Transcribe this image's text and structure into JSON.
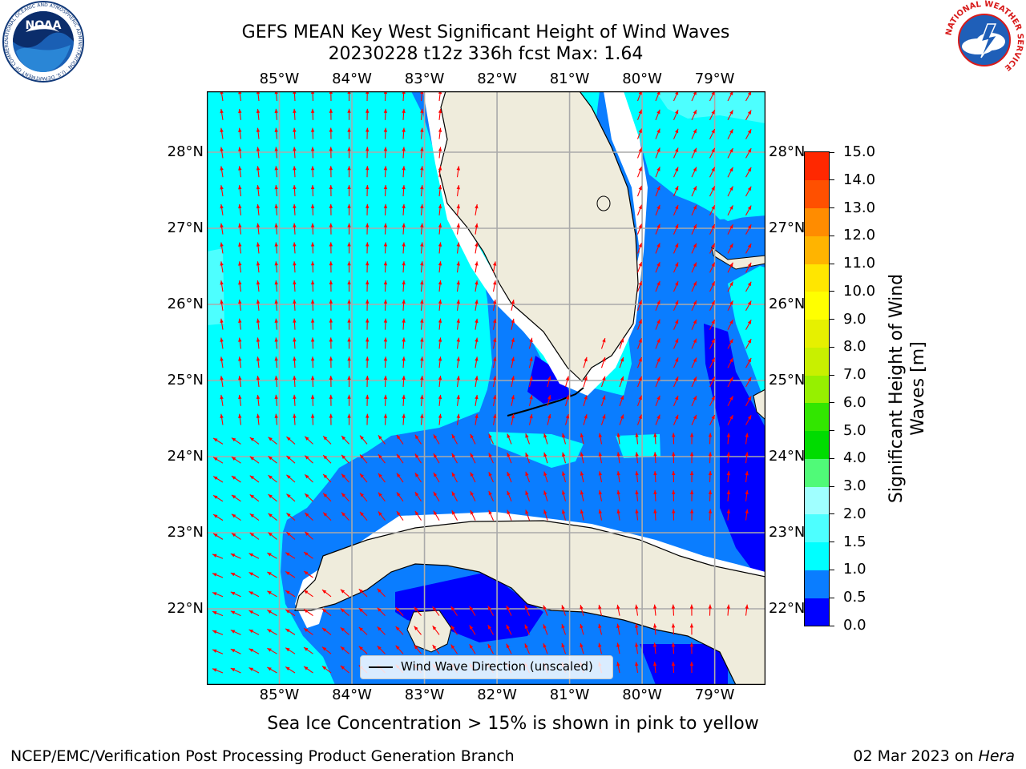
{
  "header": {
    "title_line1": "GEFS MEAN Key West Significant Height of Wind Waves",
    "title_line2": "20230228 t12z 336h fcst   Max: 1.64"
  },
  "logos": {
    "noaa_text": "NOAA",
    "noaa_ring_text": "NATIONAL OCEANIC AND ATMOSPHERIC ADMINISTRATION · U.S. DEPARTMENT OF COMMERCE",
    "nws_ring_text": "NATIONAL WEATHER SERVICE"
  },
  "map": {
    "lon_labels": [
      "85°W",
      "84°W",
      "83°W",
      "82°W",
      "81°W",
      "80°W",
      "79°W"
    ],
    "lat_labels": [
      "28°N",
      "27°N",
      "26°N",
      "25°N",
      "24°N",
      "23°N",
      "22°N"
    ],
    "lon_values": [
      -85,
      -84,
      -83,
      -82,
      -81,
      -80,
      -79
    ],
    "lat_values": [
      28,
      27,
      26,
      25,
      24,
      23,
      22
    ],
    "lon_range": [
      -86.0,
      -78.3
    ],
    "lat_range": [
      21.0,
      28.8
    ],
    "gridlines": true,
    "legend_label": "Wind Wave Direction (unscaled)",
    "legend_placement": "bottom-center",
    "arrow_color": "#ff0000",
    "land_color": "#efecdc",
    "colors": {
      "band_0_05": "#0000ff",
      "band_05_10": "#0a7dff",
      "band_10_15": "#00ffff",
      "band_15_20": "#4dffff"
    }
  },
  "colorbar": {
    "label": "Significant Height of Wind Waves [m]",
    "label_line1": "Significant Height of Wind",
    "label_line2": "Waves [m]",
    "ticks": [
      "0.0",
      "0.5",
      "1.0",
      "1.5",
      "2.0",
      "3.0",
      "4.0",
      "5.0",
      "6.0",
      "7.0",
      "8.0",
      "9.0",
      "10.0",
      "11.0",
      "12.0",
      "13.0",
      "14.0",
      "15.0"
    ],
    "colors": [
      "#0000ff",
      "#0a7dff",
      "#00ffff",
      "#4dffff",
      "#a0ffff",
      "#50fa78",
      "#00dc00",
      "#32e600",
      "#96f000",
      "#c8f000",
      "#e6f000",
      "#ffff00",
      "#ffe600",
      "#ffb400",
      "#ff8c00",
      "#ff5000",
      "#ff2800"
    ]
  },
  "notes": {
    "sea_ice": "Sea Ice Concentration > 15% is shown in pink to yellow"
  },
  "footer": {
    "left": "NCEP/EMC/Verification Post Processing Product Generation Branch",
    "right_date": "02 Mar 2023 on ",
    "right_host": "Hera"
  }
}
